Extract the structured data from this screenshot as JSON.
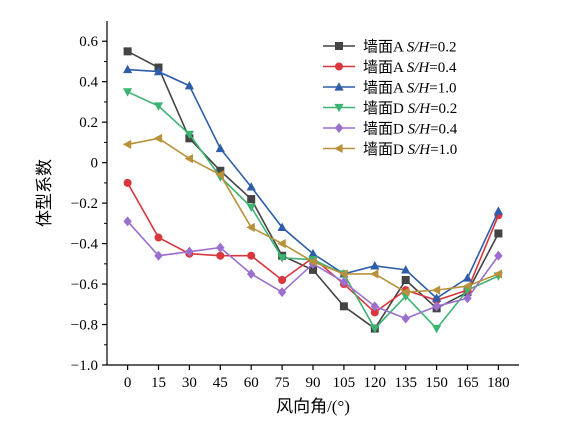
{
  "chart_data": {
    "type": "line",
    "xlabel": "风向角/(°)",
    "ylabel": "体型系数",
    "x": [
      0,
      15,
      30,
      45,
      60,
      75,
      90,
      105,
      120,
      135,
      150,
      165,
      180
    ],
    "xticks": [
      "0",
      "15",
      "30",
      "45",
      "60",
      "75",
      "90",
      "105",
      "120",
      "135",
      "150",
      "165",
      "180"
    ],
    "xlim": [
      -10,
      190
    ],
    "ylim": [
      -1.0,
      0.7
    ],
    "yticks": [
      0.6,
      0.4,
      0.2,
      0,
      -0.2,
      -0.4,
      -0.6,
      -0.8,
      -1.0
    ],
    "ytick_labels": [
      "0.6",
      "0.4",
      "0.2",
      "0",
      "−0.2",
      "−0.4",
      "−0.6",
      "−0.8",
      "−1.0"
    ],
    "grid": false,
    "legend_position": "top-right",
    "series": [
      {
        "name": "墙面A S/H=0.2",
        "prefix": "墙面A ",
        "param": "S/H",
        "suffix": "=0.2",
        "color": "#444444",
        "marker": "square",
        "values": [
          0.55,
          0.47,
          0.12,
          -0.04,
          -0.18,
          -0.46,
          -0.53,
          -0.71,
          -0.82,
          -0.58,
          -0.72,
          -0.64,
          -0.35
        ]
      },
      {
        "name": "墙面A S/H=0.4",
        "prefix": "墙面A ",
        "param": "S/H",
        "suffix": "=0.4",
        "color": "#d9363e",
        "marker": "circle",
        "values": [
          -0.1,
          -0.37,
          -0.45,
          -0.46,
          -0.46,
          -0.58,
          -0.47,
          -0.6,
          -0.74,
          -0.63,
          -0.68,
          -0.63,
          -0.26
        ]
      },
      {
        "name": "墙面A S/H=1.0",
        "prefix": "墙面A ",
        "param": "S/H",
        "suffix": "=1.0",
        "color": "#2e5eaa",
        "marker": "triangle-up",
        "values": [
          0.46,
          0.45,
          0.38,
          0.07,
          -0.12,
          -0.32,
          -0.45,
          -0.55,
          -0.51,
          -0.53,
          -0.67,
          -0.57,
          -0.24
        ]
      },
      {
        "name": "墙面D S/H=0.2",
        "prefix": "墙面D ",
        "param": "S/H",
        "suffix": "=0.2",
        "color": "#3cb371",
        "marker": "triangle-down",
        "values": [
          0.35,
          0.28,
          0.14,
          -0.07,
          -0.22,
          -0.47,
          -0.48,
          -0.55,
          -0.82,
          -0.66,
          -0.82,
          -0.63,
          -0.56
        ]
      },
      {
        "name": "墙面D S/H=0.4",
        "prefix": "墙面D ",
        "param": "S/H",
        "suffix": "=0.4",
        "color": "#9b6fcf",
        "marker": "diamond",
        "values": [
          -0.29,
          -0.46,
          -0.44,
          -0.42,
          -0.55,
          -0.64,
          -0.5,
          -0.59,
          -0.71,
          -0.77,
          -0.71,
          -0.67,
          -0.46
        ]
      },
      {
        "name": "墙面D S/H=1.0",
        "prefix": "墙面D ",
        "param": "S/H",
        "suffix": "=1.0",
        "color": "#b8913a",
        "marker": "triangle-left",
        "values": [
          0.09,
          0.12,
          0.02,
          -0.06,
          -0.32,
          -0.4,
          -0.49,
          -0.55,
          -0.55,
          -0.64,
          -0.63,
          -0.61,
          -0.55
        ]
      }
    ]
  }
}
